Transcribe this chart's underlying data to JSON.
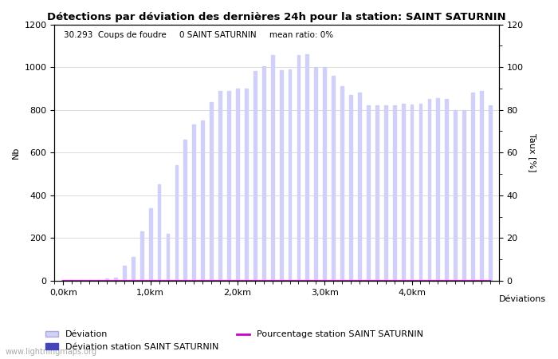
{
  "title": "Détections par déviation des dernières 24h pour la station: SAINT SATURNIN",
  "subtitle": "30.293  Coups de foudre     0 SAINT SATURNIN     mean ratio: 0%",
  "ylabel_left": "Nb",
  "ylabel_right": "Taux [%]",
  "xlabel": "Déviations",
  "background_color": "#ffffff",
  "bar_color_light": "#d0d0f8",
  "bar_color_dark": "#4444bb",
  "line_color": "#cc00cc",
  "xtick_labels": [
    "0,0km",
    "1,0km",
    "2,0km",
    "3,0km",
    "4,0km"
  ],
  "xtick_positions": [
    0,
    10,
    20,
    30,
    40
  ],
  "ylim_left": [
    0,
    1200
  ],
  "ylim_right": [
    0,
    120
  ],
  "yticks_left": [
    0,
    200,
    400,
    600,
    800,
    1000,
    1200
  ],
  "yticks_right": [
    0,
    20,
    40,
    60,
    80,
    100,
    120
  ],
  "legend_deviation": "Déviation",
  "legend_station": "Déviation station SAINT SATURNIN",
  "legend_percent": "Pourcentage station SAINT SATURNIN",
  "watermark": "www.lightningmaps.org",
  "deviation_values": [
    5,
    5,
    5,
    5,
    5,
    10,
    15,
    70,
    110,
    230,
    340,
    450,
    220,
    540,
    660,
    730,
    750,
    835,
    890,
    890,
    900,
    900,
    980,
    1005,
    1055,
    985,
    990,
    1055,
    1060,
    1000,
    1000,
    960,
    910,
    870,
    880,
    820,
    820,
    820,
    820,
    830,
    825,
    830,
    850,
    855,
    850,
    800,
    800,
    880,
    890,
    820
  ],
  "station_values": [
    0,
    0,
    0,
    0,
    0,
    0,
    0,
    0,
    0,
    0,
    0,
    0,
    0,
    0,
    0,
    0,
    0,
    0,
    0,
    0,
    0,
    0,
    0,
    0,
    0,
    0,
    0,
    0,
    0,
    0,
    0,
    0,
    0,
    0,
    0,
    0,
    0,
    0,
    0,
    0,
    0,
    0,
    0,
    0,
    0,
    0,
    0,
    0,
    0,
    0
  ],
  "percentage_values": [
    0,
    0,
    0,
    0,
    0,
    0,
    0,
    0,
    0,
    0,
    0,
    0,
    0,
    0,
    0,
    0,
    0,
    0,
    0,
    0,
    0,
    0,
    0,
    0,
    0,
    0,
    0,
    0,
    0,
    0,
    0,
    0,
    0,
    0,
    0,
    0,
    0,
    0,
    0,
    0,
    0,
    0,
    0,
    0,
    0,
    0,
    0,
    0,
    0,
    0
  ],
  "fig_width": 7.0,
  "fig_height": 4.5,
  "dpi": 100,
  "bar_width": 0.35,
  "title_fontsize": 9.5,
  "label_fontsize": 8,
  "tick_fontsize": 8,
  "subtitle_fontsize": 7.5,
  "watermark_fontsize": 7
}
